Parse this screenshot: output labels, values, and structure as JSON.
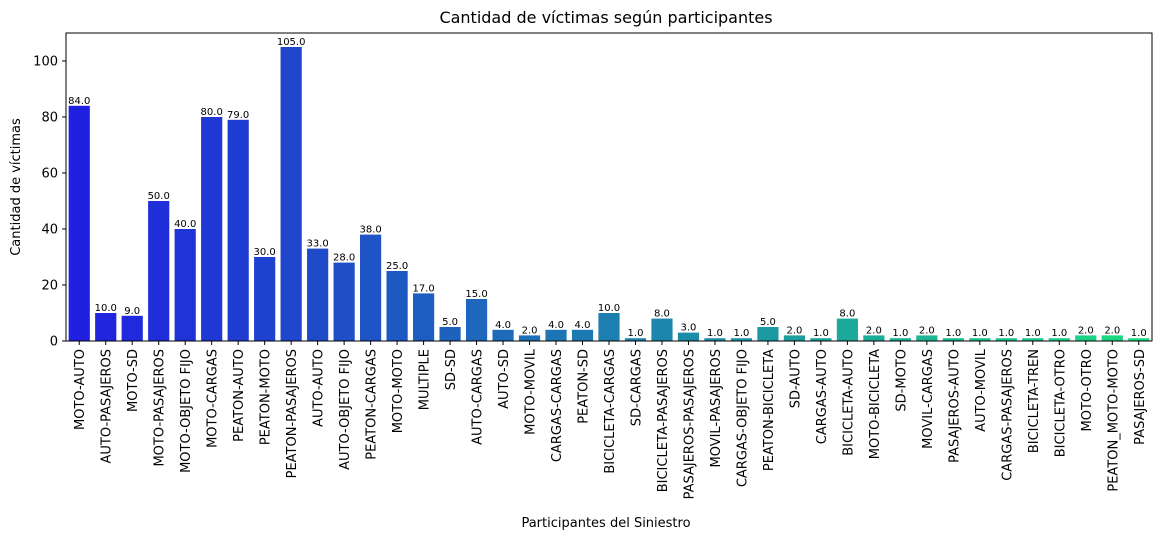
{
  "chart_data": {
    "type": "bar",
    "title": "Cantidad de víctimas según participantes",
    "xlabel": "Participantes del Siniestro",
    "ylabel": "Cantidad de víctimas",
    "ylim": [
      0,
      110
    ],
    "yticks": [
      0,
      20,
      40,
      60,
      80,
      100
    ],
    "grid": false,
    "categories": [
      "MOTO-AUTO",
      "AUTO-PASAJEROS",
      "MOTO-SD",
      "MOTO-PASAJEROS",
      "MOTO-OBJETO FIJO",
      "MOTO-CARGAS",
      "PEATON-AUTO",
      "PEATON-MOTO",
      "PEATON-PASAJEROS",
      "AUTO-AUTO",
      "AUTO-OBJETO FIJO",
      "PEATON-CARGAS",
      "MOTO-MOTO",
      "MULTIPLE",
      "SD-SD",
      "AUTO-CARGAS",
      "AUTO-SD",
      "MOTO-MOVIL",
      "CARGAS-CARGAS",
      "PEATON-SD",
      "BICICLETA-CARGAS",
      "SD-CARGAS",
      "BICICLETA-PASAJEROS",
      "PASAJEROS-PASAJEROS",
      "MOVIL-PASAJEROS",
      "CARGAS-OBJETO FIJO",
      "PEATON-BICICLETA",
      "SD-AUTO",
      "CARGAS-AUTO",
      "BICICLETA-AUTO",
      "MOTO-BICICLETA",
      "SD-MOTO",
      "MOVIL-CARGAS",
      "PASAJEROS-AUTO",
      "AUTO-MOVIL",
      "CARGAS-PASAJEROS",
      "BICICLETA-TREN",
      "BICICLETA-OTRO",
      "MOTO-OTRO",
      "PEATON_MOTO-MOTO",
      "PASAJEROS-SD"
    ],
    "values": [
      84,
      10,
      9,
      50,
      40,
      80,
      79,
      30,
      105,
      33,
      28,
      38,
      25,
      17,
      5,
      15,
      4,
      2,
      4,
      4,
      10,
      1,
      8,
      3,
      1,
      1,
      5,
      2,
      1,
      8,
      2,
      1,
      2,
      1,
      1,
      1,
      1,
      1,
      2,
      2,
      1
    ],
    "value_labels": [
      "84.0",
      "10.0",
      "9.0",
      "50.0",
      "40.0",
      "80.0",
      "79.0",
      "30.0",
      "105.0",
      "33.0",
      "28.0",
      "38.0",
      "25.0",
      "17.0",
      "5.0",
      "15.0",
      "4.0",
      "2.0",
      "4.0",
      "4.0",
      "10.0",
      "1.0",
      "8.0",
      "3.0",
      "1.0",
      "1.0",
      "5.0",
      "2.0",
      "1.0",
      "8.0",
      "2.0",
      "1.0",
      "2.0",
      "1.0",
      "1.0",
      "1.0",
      "1.0",
      "1.0",
      "2.0",
      "2.0",
      "1.0"
    ],
    "colors": {
      "palette": "winter",
      "start": "#2020e0",
      "end": "#1adc80"
    }
  }
}
